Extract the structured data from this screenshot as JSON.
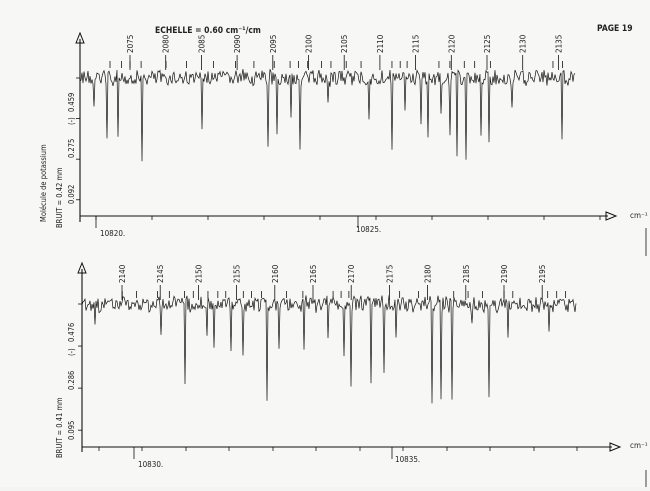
{
  "page": {
    "scale_label": "ECHELLE = 0.60 cm⁻¹/cm",
    "page_number": "PAGE 19",
    "molecule_label": "Molécule de potassium",
    "unit_label": "cm⁻¹"
  },
  "chart_data": [
    {
      "type": "line",
      "title": "",
      "xlabel": "cm⁻¹",
      "ylabel": "BRUIT = 0.42 mm",
      "noise_label": "BRUIT = 0.42 mm",
      "y_marker": "(-)",
      "y_ticks": [
        "0.459",
        "0.275",
        "0.092"
      ],
      "x_ticks": [
        "10820.",
        "10825."
      ],
      "line_labels": [
        "2075",
        "2080",
        "2085",
        "2090",
        "2095",
        "2100",
        "2105",
        "2110",
        "2115",
        "2120",
        "2125",
        "2130",
        "2135"
      ],
      "grid": false,
      "legend": "none"
    },
    {
      "type": "line",
      "title": "",
      "xlabel": "cm⁻¹",
      "ylabel": "BRUIT = 0.41 mm",
      "noise_label": "BRUIT = 0.41 mm",
      "y_marker": "(-)",
      "y_ticks": [
        "0.476",
        "0.286",
        "0.095"
      ],
      "x_ticks": [
        "10830.",
        "10835."
      ],
      "line_labels": [
        "2140",
        "2145",
        "2150",
        "2155",
        "2160",
        "2165",
        "2170",
        "2175",
        "2180",
        "2185",
        "2190",
        "2195"
      ],
      "grid": false,
      "legend": "none"
    }
  ]
}
